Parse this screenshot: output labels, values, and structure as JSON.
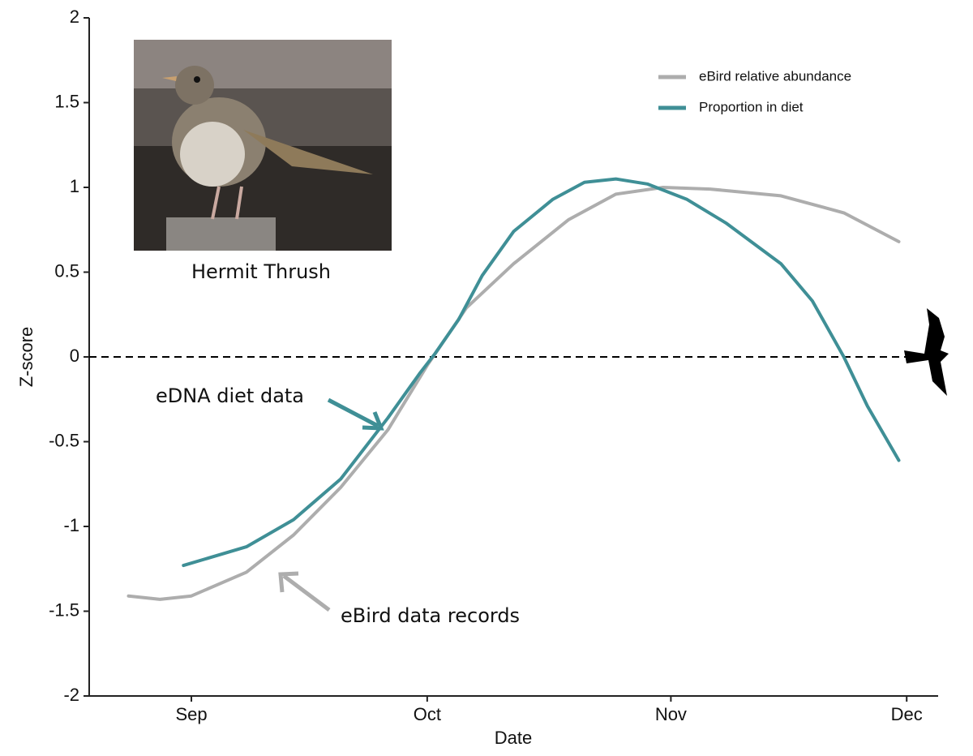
{
  "chart_data": {
    "type": "line",
    "x_label": "Date",
    "y_label": "Z-score",
    "xlim": [
      -13,
      95
    ],
    "xticks": [
      {
        "value": 0,
        "label": "Sep"
      },
      {
        "value": 30,
        "label": "Oct"
      },
      {
        "value": 61,
        "label": "Nov"
      },
      {
        "value": 91,
        "label": "Dec"
      }
    ],
    "ylim": [
      -2,
      2
    ],
    "yticks": [
      2,
      1.5,
      1,
      0.5,
      0,
      -0.5,
      -1,
      -1.5,
      -2
    ],
    "reference_line": 0,
    "legend": "top-right",
    "series": [
      {
        "name": "eBird relative abundance",
        "color": "#adadad",
        "x": [
          -8,
          -4,
          0,
          7,
          13,
          19,
          25,
          30,
          35,
          41,
          48,
          54,
          60,
          66,
          75,
          83,
          90
        ],
        "values": [
          -1.41,
          -1.43,
          -1.41,
          -1.27,
          -1.05,
          -0.77,
          -0.43,
          -0.05,
          0.29,
          0.55,
          0.81,
          0.96,
          1.0,
          0.99,
          0.95,
          0.85,
          0.68
        ]
      },
      {
        "name": "Proportion in diet",
        "color": "#3f8f96",
        "x": [
          -1,
          7,
          13,
          19,
          25,
          29,
          31,
          34,
          37,
          41,
          46,
          50,
          54,
          58,
          63,
          68,
          75,
          79,
          83,
          86,
          90
        ],
        "values": [
          -1.23,
          -1.12,
          -0.96,
          -0.72,
          -0.36,
          -0.1,
          0.02,
          0.22,
          0.48,
          0.74,
          0.93,
          1.03,
          1.05,
          1.02,
          0.93,
          0.79,
          0.55,
          0.33,
          0.0,
          -0.29,
          -0.61
        ]
      }
    ],
    "annotations": [
      "Hermit Thrush",
      "eDNA diet data",
      "eBird data records"
    ]
  }
}
